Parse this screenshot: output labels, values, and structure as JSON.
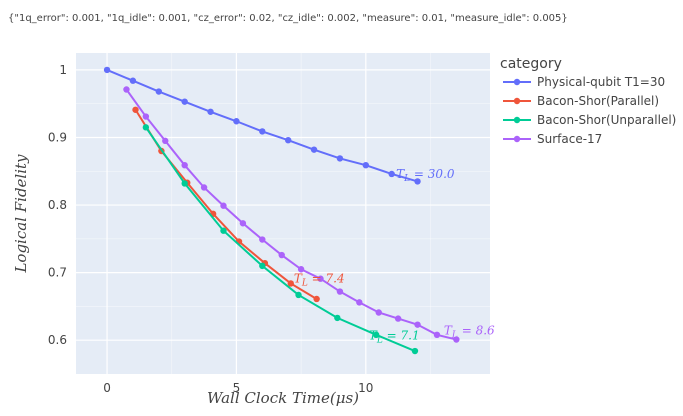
{
  "header": {
    "params_text": "{\"1q_error\": 0.001, \"1q_idle\": 0.001, \"cz_error\": 0.02, \"cz_idle\": 0.002, \"measure\": 0.01, \"measure_idle\": 0.005}"
  },
  "colors": {
    "plot_bg": "#e5ecf6",
    "grid": "#ffffff",
    "physical": "#636efa",
    "bs_parallel": "#ef553b",
    "bs_unparallel": "#00cc96",
    "surface17": "#ab63fa"
  },
  "chart_data": {
    "type": "line",
    "title": "",
    "xlabel": "Wall Clock Time(μs)",
    "ylabel": "Logical Fidelity",
    "xlim": [
      -1.2,
      14.8
    ],
    "ylim": [
      0.55,
      1.025
    ],
    "x_ticks": [
      0,
      5,
      10
    ],
    "y_ticks": [
      0.6,
      0.7,
      0.8,
      0.9,
      1
    ],
    "x_tick_labels": [
      "0",
      "5",
      "10"
    ],
    "y_tick_labels": [
      "0.6",
      "0.7",
      "0.8",
      "0.9",
      "1"
    ],
    "grid": true,
    "legend": {
      "title": "category",
      "position": "top-right"
    },
    "series": [
      {
        "name": "Physical-qubit T1=30",
        "color": "#636efa",
        "x": [
          0,
          1,
          2,
          3,
          4,
          5,
          6,
          7,
          8,
          9,
          10,
          11,
          12
        ],
        "y": [
          1.0,
          0.984,
          0.968,
          0.953,
          0.938,
          0.924,
          0.909,
          0.896,
          0.882,
          0.869,
          0.859,
          0.846,
          0.835
        ]
      },
      {
        "name": "Bacon-Shor(Parallel)",
        "color": "#ef553b",
        "x": [
          1.1,
          2.1,
          3.1,
          4.1,
          5.1,
          6.1,
          7.1,
          8.1
        ],
        "y": [
          0.941,
          0.88,
          0.833,
          0.787,
          0.746,
          0.714,
          0.684,
          0.661
        ]
      },
      {
        "name": "Bacon-Shor(Unparallel)",
        "color": "#00cc96",
        "x": [
          1.5,
          3.0,
          4.5,
          6.0,
          7.4,
          8.9,
          10.4,
          11.9
        ],
        "y": [
          0.915,
          0.832,
          0.762,
          0.71,
          0.667,
          0.633,
          0.608,
          0.584
        ]
      },
      {
        "name": "Surface-17",
        "color": "#ab63fa",
        "x": [
          0.75,
          1.5,
          2.25,
          3.0,
          3.75,
          4.5,
          5.25,
          6.0,
          6.75,
          7.5,
          8.25,
          9.0,
          9.75,
          10.5,
          11.25,
          12.0,
          12.75,
          13.5
        ],
        "y": [
          0.971,
          0.931,
          0.895,
          0.859,
          0.826,
          0.799,
          0.773,
          0.749,
          0.726,
          0.705,
          0.691,
          0.672,
          0.656,
          0.641,
          0.632,
          0.623,
          0.608,
          0.601
        ]
      }
    ],
    "annotations": [
      {
        "text": "T_L = 30.0",
        "sub_base": "T",
        "sub": "L",
        "rest": " = 30.0",
        "x": 12.3,
        "y": 0.846,
        "color": "#636efa"
      },
      {
        "text": "T_L = 7.4",
        "sub_base": "T",
        "sub": "L",
        "rest": " = 7.4",
        "x": 8.2,
        "y": 0.691,
        "color": "#ef553b"
      },
      {
        "text": "T_L = 7.1",
        "sub_base": "T",
        "sub": "L",
        "rest": " = 7.1",
        "x": 11.1,
        "y": 0.607,
        "color": "#00cc96"
      },
      {
        "text": "T_L = 8.6",
        "sub_base": "T",
        "sub": "L",
        "rest": " = 8.6",
        "x": 14.0,
        "y": 0.614,
        "color": "#ab63fa"
      }
    ]
  }
}
